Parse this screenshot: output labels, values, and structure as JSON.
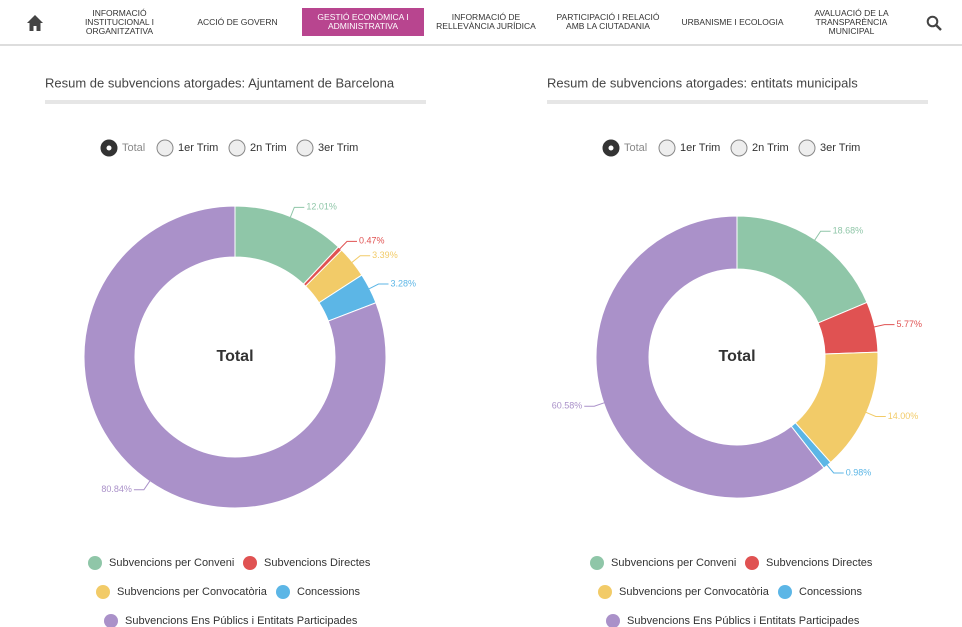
{
  "nav": {
    "items": [
      "INFORMACIÓ INSTITUCIONAL I ORGANITZATIVA",
      "ACCIÓ DE GOVERN",
      "GESTIÓ ECONÒMICA I ADMINISTRATIVA",
      "INFORMACIÓ DE RELLEVÀNCIA JURÍDICA",
      "PARTICIPACIÓ I RELACIÓ AMB LA CIUTADANIA",
      "URBANISME I ECOLOGIA",
      "AVALUACIÓ DE LA TRANSPARÈNCIA MUNICIPAL"
    ],
    "active": 2
  },
  "chart_data": [
    {
      "type": "pie",
      "donut": true,
      "title": "Resum de subvencions atorgades: Ajuntament de Barcelona",
      "options": [
        "Total",
        "1er Trim",
        "2n Trim",
        "3er Trim"
      ],
      "selected_option": 0,
      "center_label": "Total",
      "categories": [
        "Subvencions per Conveni",
        "Subvencions Directes",
        "Subvencions per Convocatòria",
        "Concessions",
        "Subvencions Ens Públics i Entitats Participades"
      ],
      "values": [
        12.01,
        0.47,
        3.39,
        3.28,
        80.84
      ],
      "value_labels": [
        "12.01%",
        "0.47%",
        "3.39%",
        "3.28%",
        "80.84%"
      ],
      "colors": [
        "#8fc6a8",
        "#e05252",
        "#f2cb68",
        "#5cb6e6",
        "#aa91c9"
      ]
    },
    {
      "type": "pie",
      "donut": true,
      "title": "Resum de subvencions atorgades: entitats municipals",
      "options": [
        "Total",
        "1er Trim",
        "2n Trim",
        "3er Trim"
      ],
      "selected_option": 0,
      "center_label": "Total",
      "categories": [
        "Subvencions per Conveni",
        "Subvencions Directes",
        "Subvencions per Convocatòria",
        "Concessions",
        "Subvencions Ens Públics i Entitats Participades"
      ],
      "values": [
        18.68,
        5.77,
        14.0,
        0.98,
        60.58
      ],
      "value_labels": [
        "18.68%",
        "5.77%",
        "14.00%",
        "0.98%",
        "60.58%"
      ],
      "colors": [
        "#8fc6a8",
        "#e05252",
        "#f2cb68",
        "#5cb6e6",
        "#aa91c9"
      ]
    }
  ]
}
